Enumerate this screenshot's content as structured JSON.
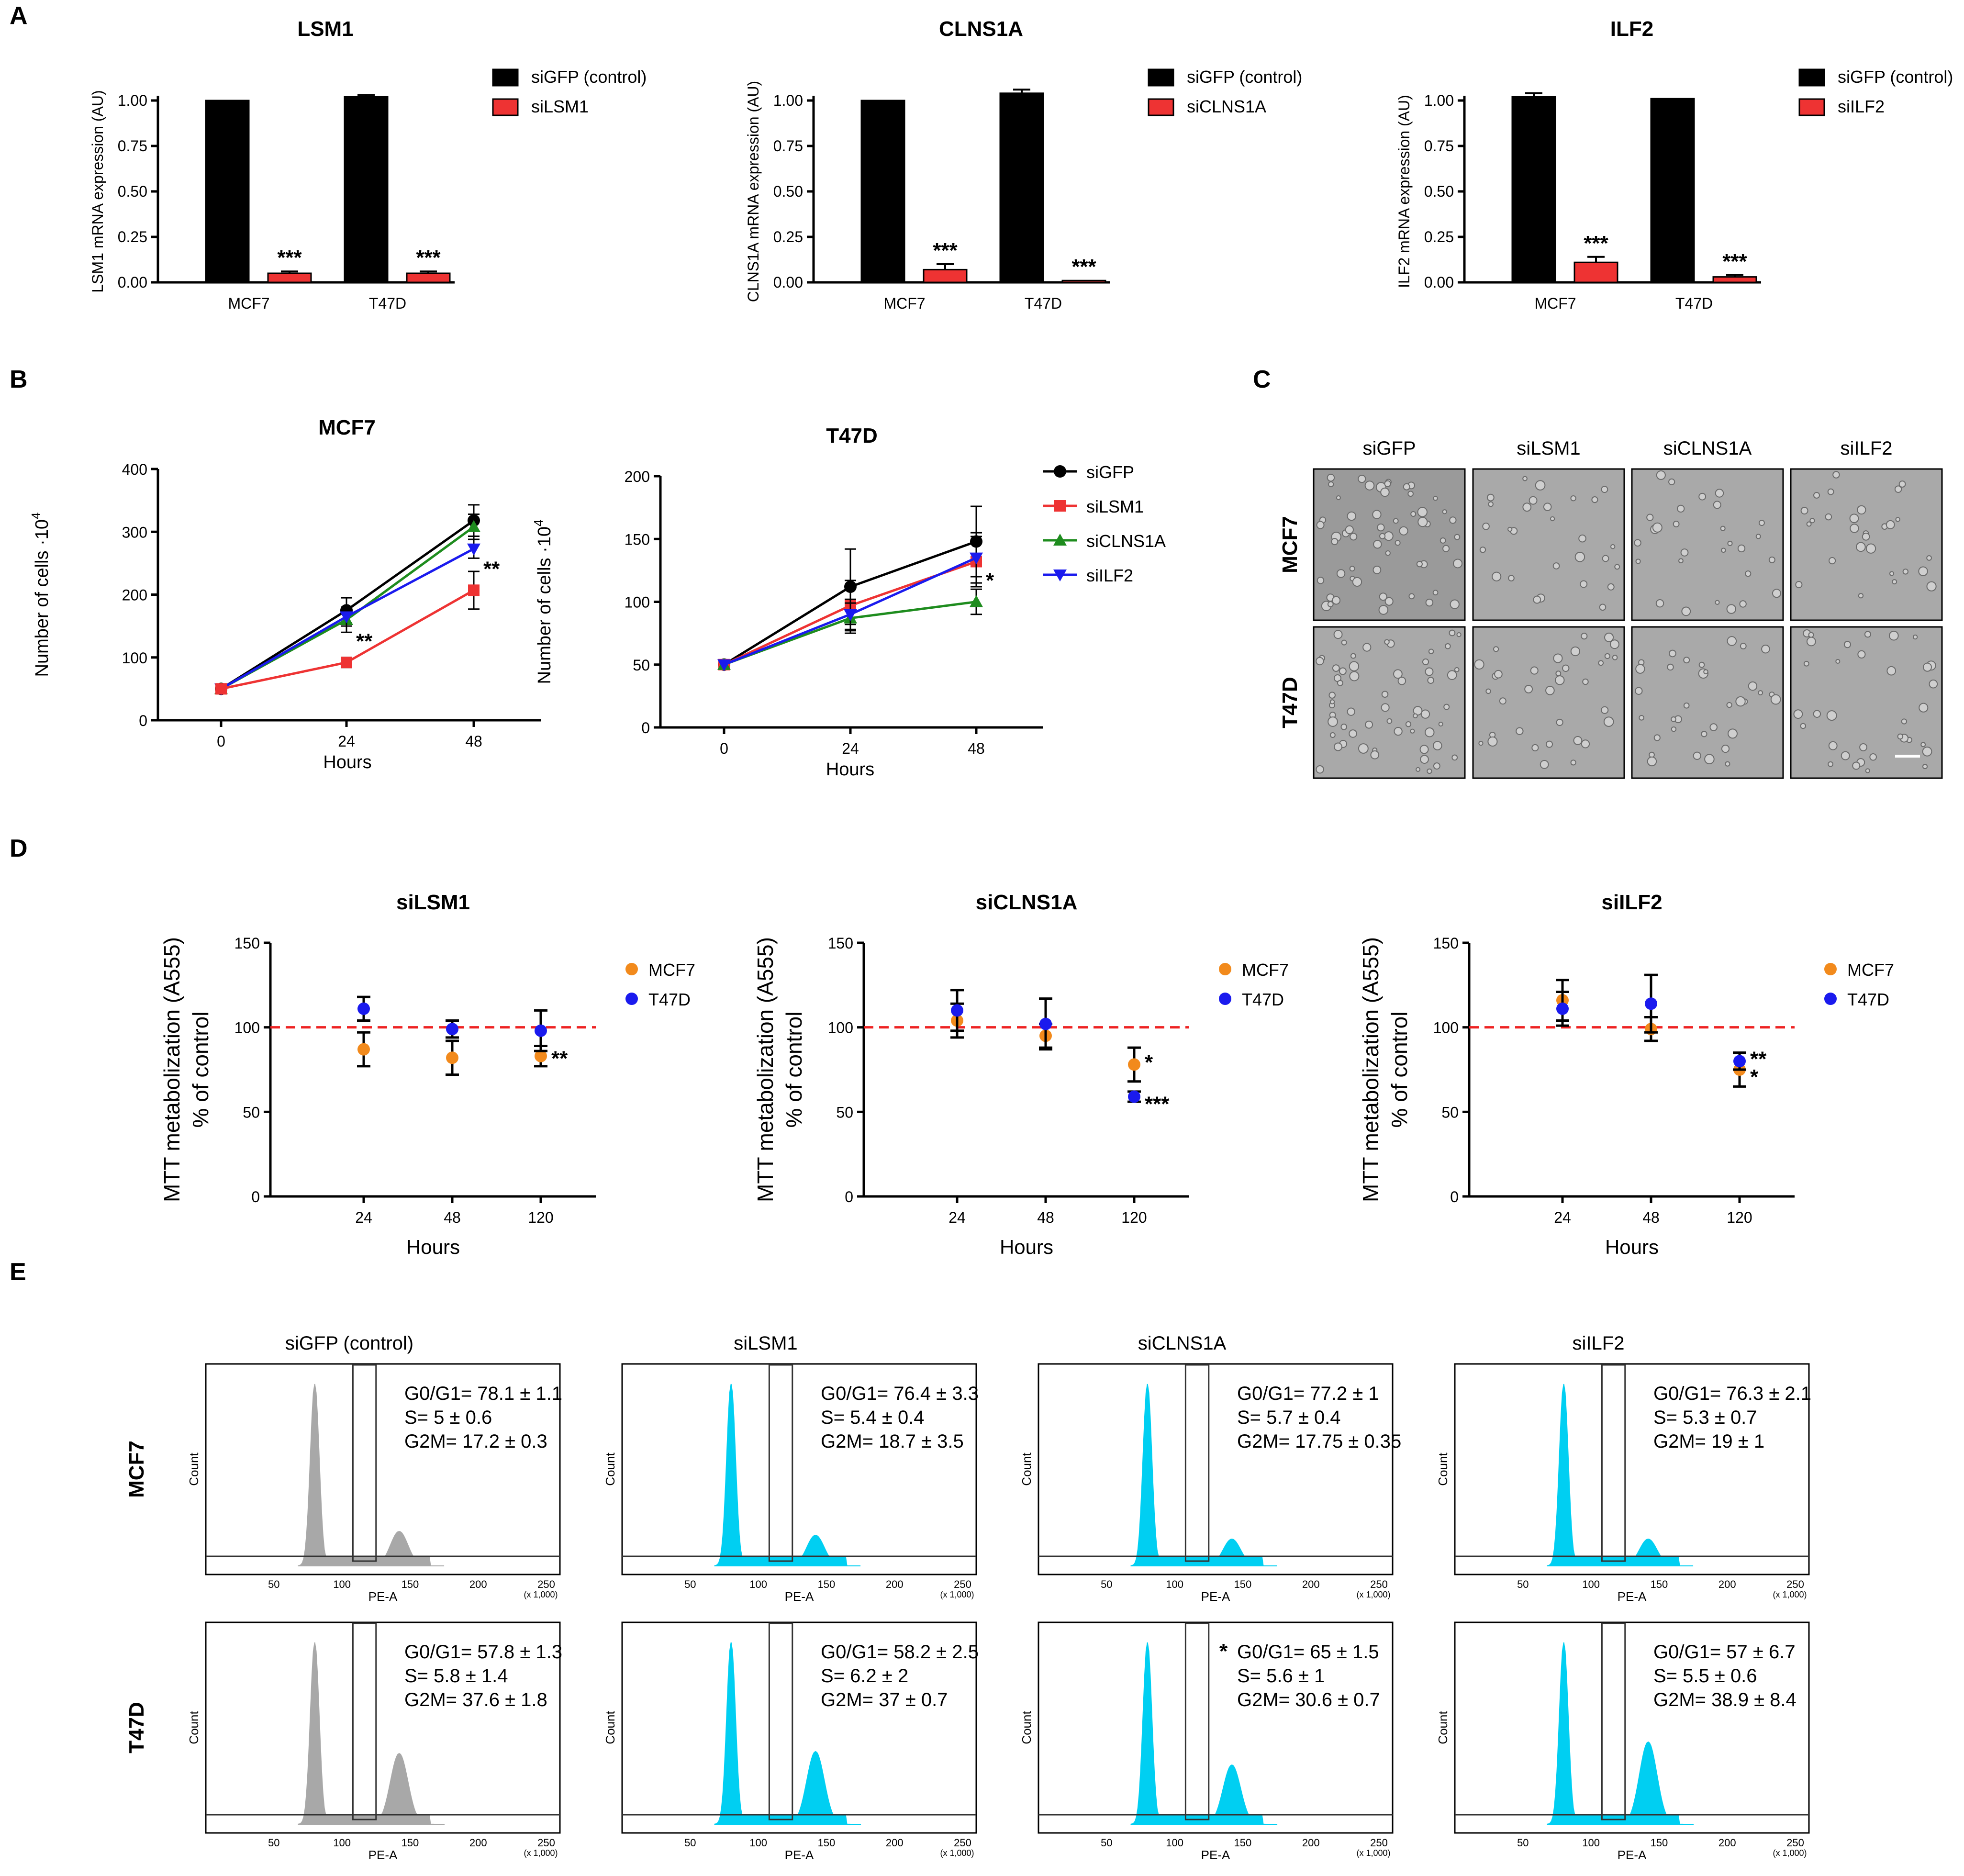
{
  "panels": {
    "A": "A",
    "B": "B",
    "C": "C",
    "D": "D",
    "E": "E"
  },
  "colors": {
    "control": "#000000",
    "red": "#ee3333",
    "green": "#1e8c1e",
    "blue": "#1a1aee",
    "orange": "#f28a1c",
    "cyan": "#00cff2",
    "gray": "#a8a8a8",
    "dash": "#ee2222"
  },
  "chart_data": [
    {
      "id": "A1",
      "panel": "A",
      "type": "bar",
      "title": "LSM1",
      "ylabel": "LSM1 mRNA expression (AU)",
      "ylim": [
        0,
        1
      ],
      "yticks": [
        "0.00",
        "0.25",
        "0.50",
        "0.75",
        "1.00"
      ],
      "categories": [
        "MCF7",
        "T47D"
      ],
      "series": [
        {
          "name": "siGFP (control)",
          "values": [
            1.0,
            1.02
          ],
          "err": [
            0.0,
            0.01
          ]
        },
        {
          "name": "siLSM1",
          "values": [
            0.05,
            0.05
          ],
          "err": [
            0.01,
            0.01
          ]
        }
      ],
      "significance": [
        "***",
        "***"
      ]
    },
    {
      "id": "A2",
      "panel": "A",
      "type": "bar",
      "title": "CLNS1A",
      "ylabel": "CLNS1A mRNA expression (AU)",
      "ylim": [
        0,
        1
      ],
      "yticks": [
        "0.00",
        "0.25",
        "0.50",
        "0.75",
        "1.00"
      ],
      "categories": [
        "MCF7",
        "T47D"
      ],
      "series": [
        {
          "name": "siGFP (control)",
          "values": [
            1.0,
            1.04
          ],
          "err": [
            0.0,
            0.02
          ]
        },
        {
          "name": "siCLNS1A",
          "values": [
            0.07,
            0.01
          ],
          "err": [
            0.03,
            0.0
          ]
        }
      ],
      "significance": [
        "***",
        "***"
      ]
    },
    {
      "id": "A3",
      "panel": "A",
      "type": "bar",
      "title": "ILF2",
      "ylabel": "ILF2 mRNA expression (AU)",
      "ylim": [
        0,
        1
      ],
      "yticks": [
        "0.00",
        "0.25",
        "0.50",
        "0.75",
        "1.00"
      ],
      "categories": [
        "MCF7",
        "T47D"
      ],
      "series": [
        {
          "name": "siGFP (control)",
          "values": [
            1.02,
            1.01
          ],
          "err": [
            0.02,
            0.0
          ]
        },
        {
          "name": "siILF2",
          "values": [
            0.11,
            0.03
          ],
          "err": [
            0.03,
            0.01
          ]
        }
      ],
      "significance": [
        "***",
        "***"
      ]
    },
    {
      "id": "B1",
      "panel": "B",
      "type": "line",
      "title": "MCF7",
      "xlabel": "Hours",
      "ylabel": "Number of cells ·10",
      "ylabel_sup": "4",
      "x": [
        0,
        24,
        48
      ],
      "xticks": [
        "0",
        "24",
        "48"
      ],
      "ylim": [
        0,
        400
      ],
      "yticks": [
        "0",
        "100",
        "200",
        "300",
        "400"
      ],
      "series": [
        {
          "name": "siGFP",
          "values": [
            50,
            175,
            318
          ],
          "err": [
            0,
            20,
            25
          ]
        },
        {
          "name": "siCLNS1A",
          "values": [
            50,
            160,
            308
          ],
          "err": [
            0,
            20,
            20
          ]
        },
        {
          "name": "siILF2",
          "values": [
            50,
            165,
            273
          ],
          "err": [
            0,
            15,
            15
          ]
        },
        {
          "name": "siLSM1",
          "values": [
            50,
            92,
            207
          ],
          "err": [
            0,
            8,
            30
          ]
        }
      ],
      "annotations": [
        {
          "x": 24,
          "y": 92,
          "text": "**"
        },
        {
          "x": 48,
          "y": 207,
          "text": "**"
        }
      ]
    },
    {
      "id": "B2",
      "panel": "B",
      "type": "line",
      "title": "T47D",
      "xlabel": "Hours",
      "ylabel": "Number of cells ·10",
      "ylabel_sup": "4",
      "x": [
        0,
        24,
        48
      ],
      "xticks": [
        "0",
        "24",
        "48"
      ],
      "ylim": [
        0,
        200
      ],
      "yticks": [
        "0",
        "50",
        "100",
        "150",
        "200"
      ],
      "series": [
        {
          "name": "siGFP",
          "values": [
            50,
            112,
            148
          ],
          "err": [
            0,
            30,
            28
          ]
        },
        {
          "name": "siLSM1",
          "values": [
            50,
            97,
            132
          ],
          "err": [
            0,
            20,
            20
          ]
        },
        {
          "name": "siCLNS1A",
          "values": [
            50,
            87,
            100
          ],
          "err": [
            0,
            12,
            10
          ]
        },
        {
          "name": "siILF2",
          "values": [
            50,
            90,
            135
          ],
          "err": [
            0,
            12,
            20
          ]
        }
      ],
      "annotations": [
        {
          "x": 48,
          "y": 100,
          "text": "*"
        }
      ],
      "legend": [
        "siGFP",
        "siLSM1",
        "siCLNS1A",
        "siILF2"
      ]
    },
    {
      "id": "D1",
      "panel": "D",
      "type": "scatter",
      "title": "siLSM1",
      "xlabel": "Hours",
      "ylabel": "MTT metabolization (A555)",
      "ylabel2": "% of control",
      "categories": [
        "24",
        "48",
        "120"
      ],
      "ylim": [
        0,
        150
      ],
      "yticks": [
        "0",
        "50",
        "100",
        "150"
      ],
      "reference": 100,
      "series": [
        {
          "name": "MCF7",
          "values": [
            87,
            82,
            83
          ],
          "err": [
            10,
            10,
            6
          ]
        },
        {
          "name": "T47D",
          "values": [
            111,
            99,
            98
          ],
          "err": [
            7,
            5,
            12
          ]
        }
      ],
      "annotations": [
        {
          "cat": "120",
          "text": "**"
        }
      ]
    },
    {
      "id": "D2",
      "panel": "D",
      "type": "scatter",
      "title": "siCLNS1A",
      "xlabel": "Hours",
      "ylabel": "MTT metabolization (A555)",
      "ylabel2": "% of control",
      "categories": [
        "24",
        "48",
        "120"
      ],
      "ylim": [
        0,
        150
      ],
      "yticks": [
        "0",
        "50",
        "100",
        "150"
      ],
      "reference": 100,
      "series": [
        {
          "name": "MCF7",
          "values": [
            104,
            95,
            78
          ],
          "err": [
            10,
            7,
            10
          ]
        },
        {
          "name": "T47D",
          "values": [
            110,
            102,
            59
          ],
          "err": [
            12,
            15,
            3
          ]
        }
      ],
      "annotations": [
        {
          "cat": "120",
          "text": "*"
        },
        {
          "cat": "120",
          "text": "***"
        }
      ]
    },
    {
      "id": "D3",
      "panel": "D",
      "type": "scatter",
      "title": "siILF2",
      "xlabel": "Hours",
      "ylabel": "MTT metabolization (A555)",
      "ylabel2": "% of control",
      "categories": [
        "24",
        "48",
        "120"
      ],
      "ylim": [
        0,
        150
      ],
      "yticks": [
        "0",
        "50",
        "100",
        "150"
      ],
      "reference": 100,
      "series": [
        {
          "name": "MCF7",
          "values": [
            116,
            99,
            75
          ],
          "err": [
            12,
            7,
            10
          ]
        },
        {
          "name": "T47D",
          "values": [
            111,
            114,
            80
          ],
          "err": [
            10,
            17,
            5
          ]
        }
      ],
      "annotations": [
        {
          "cat": "120",
          "text": "**"
        },
        {
          "cat": "120",
          "text": "*"
        }
      ]
    }
  ],
  "images_c": {
    "columns": [
      "siGFP",
      "siLSM1",
      "siCLNS1A",
      "siILF2"
    ],
    "rows": [
      "MCF7",
      "T47D"
    ]
  },
  "cytometry": {
    "columns": [
      "siGFP (control)",
      "siLSM1",
      "siCLNS1A",
      "siILF2"
    ],
    "rows": [
      "MCF7",
      "T47D"
    ],
    "xlabel": "PE-A",
    "xscale": "(x 1,000)",
    "ylabel": "Count",
    "xticks": [
      "50",
      "100",
      "150",
      "200",
      "250"
    ],
    "stats": [
      [
        "G0/G1= 78.1 ± 1.1",
        "S= 5 ± 0.6",
        "G2M= 17.2 ± 0.3"
      ],
      [
        "G0/G1= 76.4 ± 3.3",
        "S= 5.4 ± 0.4",
        "G2M= 18.7 ± 3.5"
      ],
      [
        "G0/G1= 77.2 ± 1",
        "S= 5.7 ± 0.4",
        "G2M= 17.75 ± 0.35"
      ],
      [
        "G0/G1= 76.3 ± 2.1",
        "S= 5.3 ± 0.7",
        "G2M= 19 ± 1"
      ],
      [
        "G0/G1= 57.8 ± 1.3",
        "S= 5.8 ± 1.4",
        "G2M= 37.6 ± 1.8"
      ],
      [
        "G0/G1= 58.2 ± 2.5",
        "S= 6.2 ± 2",
        "G2M= 37 ± 0.7"
      ],
      [
        "G0/G1= 65 ± 1.5",
        "S= 5.6 ± 1",
        "G2M= 30.6 ± 0.7"
      ],
      [
        "G0/G1= 57 ± 6.7",
        "S= 5.5 ± 0.6",
        "G2M= 38.9 ± 8.4"
      ]
    ],
    "star": "*"
  }
}
